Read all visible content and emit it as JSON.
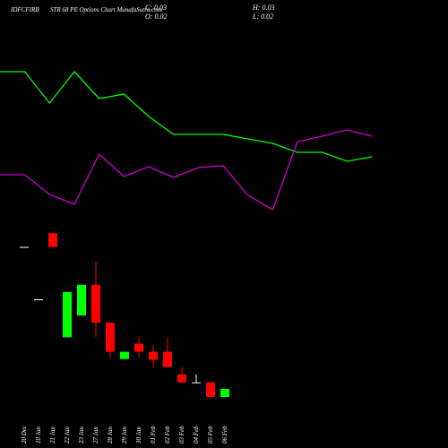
{
  "header": {
    "symbol": "IDFCFIRB",
    "title": "STR 68 PE Options Chart MunafaSutra.com",
    "close": "C: 0.03",
    "open": "O: 0.02",
    "high": "H: 0.03",
    "low": "L: 0.02"
  },
  "chart_data": [
    {
      "type": "line",
      "xlim": [
        0,
        15
      ],
      "ylim": [
        0,
        100
      ],
      "x": [
        0,
        1,
        2,
        3,
        4,
        5,
        6,
        7,
        8,
        9,
        10,
        11,
        12,
        13,
        14,
        15
      ],
      "series": [
        {
          "color": "#00ff00",
          "values": [
            85,
            85,
            67.5,
            85,
            70,
            72.5,
            60,
            50,
            50,
            50,
            47.5,
            45,
            40,
            40,
            35,
            37.5
          ]
        },
        {
          "color": "#cc00cc",
          "values": [
            27.5,
            27.5,
            16.5,
            11,
            39,
            26.5,
            32,
            26,
            31.5,
            32.5,
            16,
            8,
            46,
            49,
            52.5,
            49
          ]
        }
      ]
    },
    {
      "type": "candlestick",
      "ylim": [
        0,
        0.2344
      ],
      "up_color": "#00ff00",
      "down_color": "#ff0000",
      "flat_color": "#ffffff",
      "categories": [
        "20 Dec",
        "10 Jan",
        "21 Jan",
        "22 Jan",
        "23 Jan",
        "27 Jan",
        "28 Jan",
        "29 Jan",
        "30 Jan",
        "01 Feb",
        "02 Feb",
        "03 Feb",
        "04 Feb",
        "05 Feb",
        "06 Feb"
      ],
      "open": [
        0.206,
        0.141,
        0.223,
        0.094,
        0.121,
        0.159,
        0.112,
        0.067,
        0.086,
        0.076,
        0.076,
        0.048,
        0.038,
        0.038,
        0.02
      ],
      "high": [
        0.206,
        0.141,
        0.223,
        0.15,
        0.159,
        0.188,
        0.112,
        0.076,
        0.094,
        0.084,
        0.094,
        0.057,
        0.048,
        0.038,
        0.03
      ],
      "low": [
        0.206,
        0.141,
        0.206,
        0.094,
        0.121,
        0.094,
        0.068,
        0.067,
        0.068,
        0.057,
        0.057,
        0.038,
        0.038,
        0.02,
        0.02
      ],
      "close": [
        0.206,
        0.141,
        0.206,
        0.15,
        0.159,
        0.112,
        0.076,
        0.076,
        0.076,
        0.066,
        0.057,
        0.038,
        0.038,
        0.02,
        0.03
      ]
    }
  ]
}
